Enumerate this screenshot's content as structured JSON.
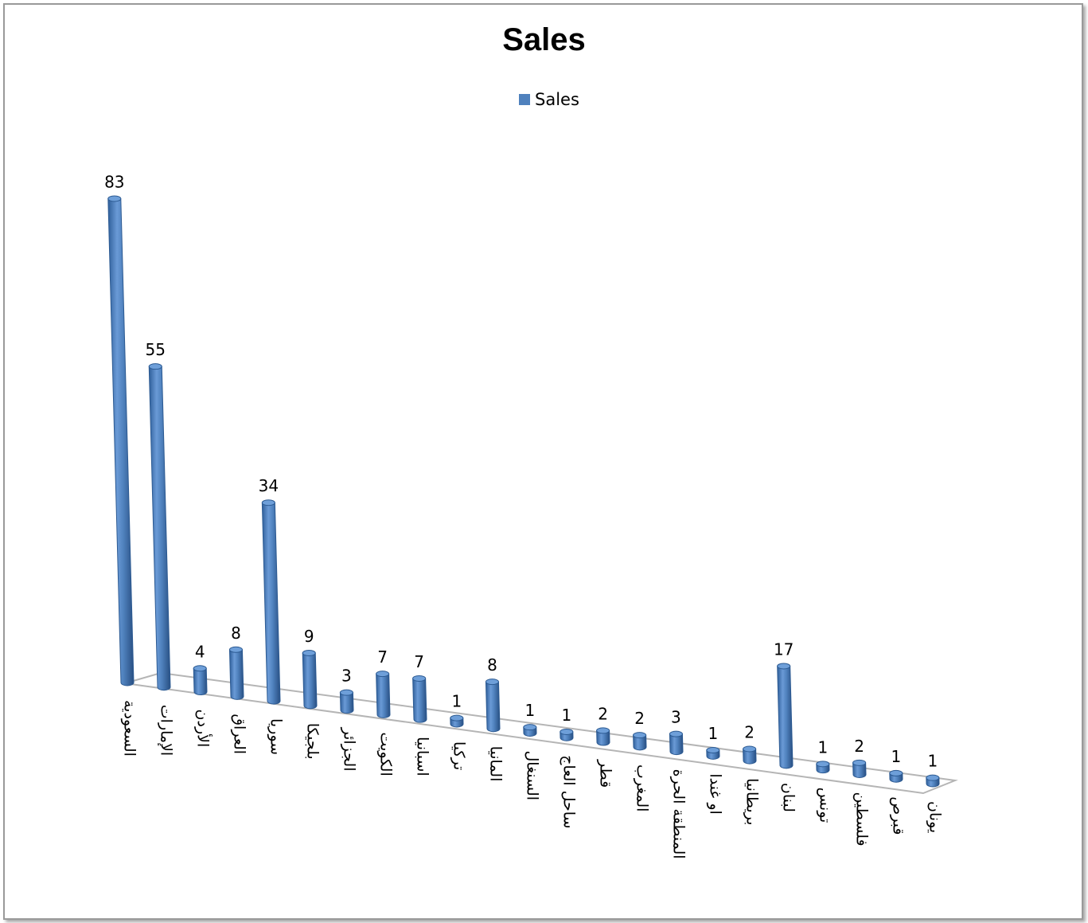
{
  "chart_data": {
    "type": "bar",
    "title": "Sales",
    "legend": {
      "position": "top",
      "entries": [
        "Sales"
      ]
    },
    "series": [
      {
        "name": "Sales",
        "color": "#4f81bd"
      }
    ],
    "categories": [
      "السعودية",
      "الإمارات",
      "الأردن",
      "العراق",
      "سوريا",
      "بلجيكا",
      "الجزائر",
      "الكويت",
      "اسبانيا",
      "تركيا",
      "المانيا",
      "السنغال",
      "ساحل العاج",
      "قطر",
      "المغرب",
      "المنطقة الحرة",
      "او غندا",
      "بريطانيا",
      "لبنان",
      "تونس",
      "فلسطين",
      "قبرص",
      "يونان"
    ],
    "values": [
      83,
      55,
      4,
      8,
      34,
      9,
      3,
      7,
      7,
      1,
      8,
      1,
      1,
      2,
      2,
      3,
      1,
      2,
      17,
      1,
      2,
      1,
      1
    ],
    "data_labels": [
      "83",
      "55",
      "4",
      "8",
      "34",
      "9",
      "3",
      "7",
      "7",
      "1",
      "8",
      "1",
      "1",
      "2",
      "2",
      "3",
      "1",
      "2",
      "17",
      "1",
      "2",
      "1",
      "1"
    ],
    "style": "3d-cylinder",
    "grid": false
  }
}
